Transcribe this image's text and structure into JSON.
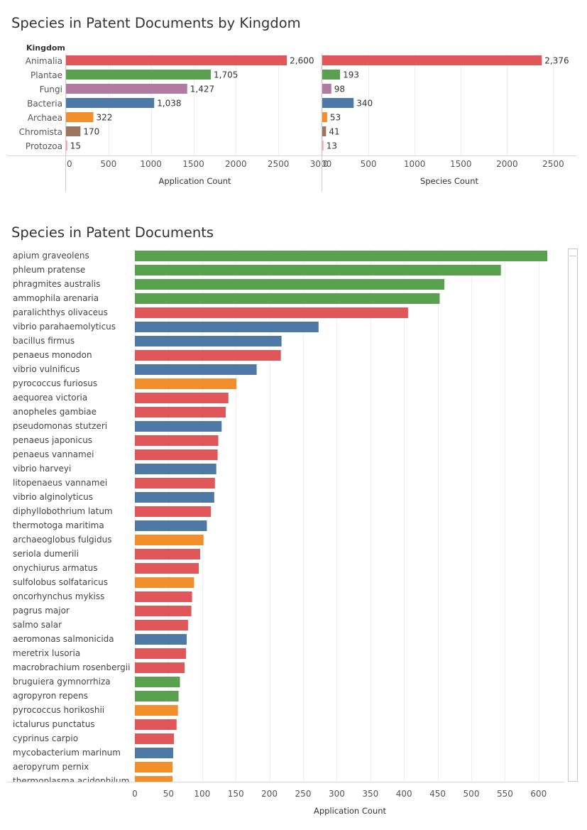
{
  "kingdom_colors": {
    "Animalia": "#e15759",
    "Plantae": "#59a14f",
    "Fungi": "#b07aa1",
    "Bacteria": "#4e79a7",
    "Archaea": "#f28e2b",
    "Chromista": "#9c755f",
    "Protozoa": "#ff9da7"
  },
  "chart_data": [
    {
      "type": "bar",
      "orientation": "horizontal",
      "title": "Species in Patent Documents by Kingdom",
      "row_header": "Kingdom",
      "categories": [
        "Animalia",
        "Plantae",
        "Fungi",
        "Bacteria",
        "Archaea",
        "Chromista",
        "Protozoa"
      ],
      "series": [
        {
          "name": "Application Count",
          "values": [
            2600,
            1705,
            1427,
            1038,
            322,
            170,
            15
          ],
          "labels": [
            "2,600",
            "1,705",
            "1,427",
            "1,038",
            "322",
            "170",
            "15"
          ],
          "xlim": [
            0,
            3000
          ],
          "ticks": [
            0,
            500,
            1000,
            1500,
            2000,
            2500,
            3000
          ],
          "xlabel": "Application Count"
        },
        {
          "name": "Species Count",
          "values": [
            2376,
            193,
            98,
            340,
            53,
            41,
            13
          ],
          "labels": [
            "2,376",
            "193",
            "98",
            "340",
            "53",
            "41",
            "13"
          ],
          "xlim": [
            0,
            2750
          ],
          "ticks": [
            0,
            500,
            1000,
            1500,
            2000,
            2500
          ],
          "xlabel": "Species Count"
        }
      ],
      "color_by": "kingdom",
      "grid": true
    },
    {
      "type": "bar",
      "orientation": "horizontal",
      "title": "Species in Patent Documents",
      "categories": [
        "apium graveolens",
        "phleum pratense",
        "phragmites australis",
        "ammophila arenaria",
        "paralichthys olivaceus",
        "vibrio parahaemolyticus",
        "bacillus firmus",
        "penaeus monodon",
        "vibrio vulnificus",
        "pyrococcus furiosus",
        "aequorea victoria",
        "anopheles gambiae",
        "pseudomonas stutzeri",
        "penaeus japonicus",
        "penaeus vannamei",
        "vibrio harveyi",
        "litopenaeus vannamei",
        "vibrio alginolyticus",
        "diphyllobothrium latum",
        "thermotoga maritima",
        "archaeoglobus fulgidus",
        "seriola dumerili",
        "onychiurus armatus",
        "sulfolobus solfataricus",
        "oncorhynchus mykiss",
        "pagrus major",
        "salmo salar",
        "aeromonas salmonicida",
        "meretrix lusoria",
        "macrobrachium rosenbergii",
        "bruguiera gymnorrhiza",
        "agropyron repens",
        "pyrococcus horikoshii",
        "ictalurus punctatus",
        "cyprinus carpio",
        "mycobacterium marinum",
        "aeropyrum pernix",
        "thermoplasma acidophilum"
      ],
      "kingdoms": [
        "Plantae",
        "Plantae",
        "Plantae",
        "Plantae",
        "Animalia",
        "Bacteria",
        "Bacteria",
        "Animalia",
        "Bacteria",
        "Archaea",
        "Animalia",
        "Animalia",
        "Bacteria",
        "Animalia",
        "Animalia",
        "Bacteria",
        "Animalia",
        "Bacteria",
        "Animalia",
        "Bacteria",
        "Archaea",
        "Animalia",
        "Animalia",
        "Archaea",
        "Animalia",
        "Animalia",
        "Animalia",
        "Bacteria",
        "Animalia",
        "Animalia",
        "Plantae",
        "Plantae",
        "Archaea",
        "Animalia",
        "Animalia",
        "Bacteria",
        "Archaea",
        "Archaea"
      ],
      "values": [
        613,
        544,
        460,
        453,
        406,
        273,
        218,
        217,
        181,
        151,
        139,
        135,
        129,
        124,
        123,
        121,
        119,
        118,
        113,
        107,
        102,
        97,
        95,
        88,
        85,
        84,
        79,
        77,
        76,
        74,
        67,
        65,
        64,
        62,
        58,
        57,
        56,
        56
      ],
      "xlim": [
        0,
        650
      ],
      "ticks": [
        0,
        50,
        100,
        150,
        200,
        250,
        300,
        350,
        400,
        450,
        500,
        550,
        600
      ],
      "xlabel": "Application Count",
      "color_by": "kingdom",
      "grid": true
    }
  ]
}
